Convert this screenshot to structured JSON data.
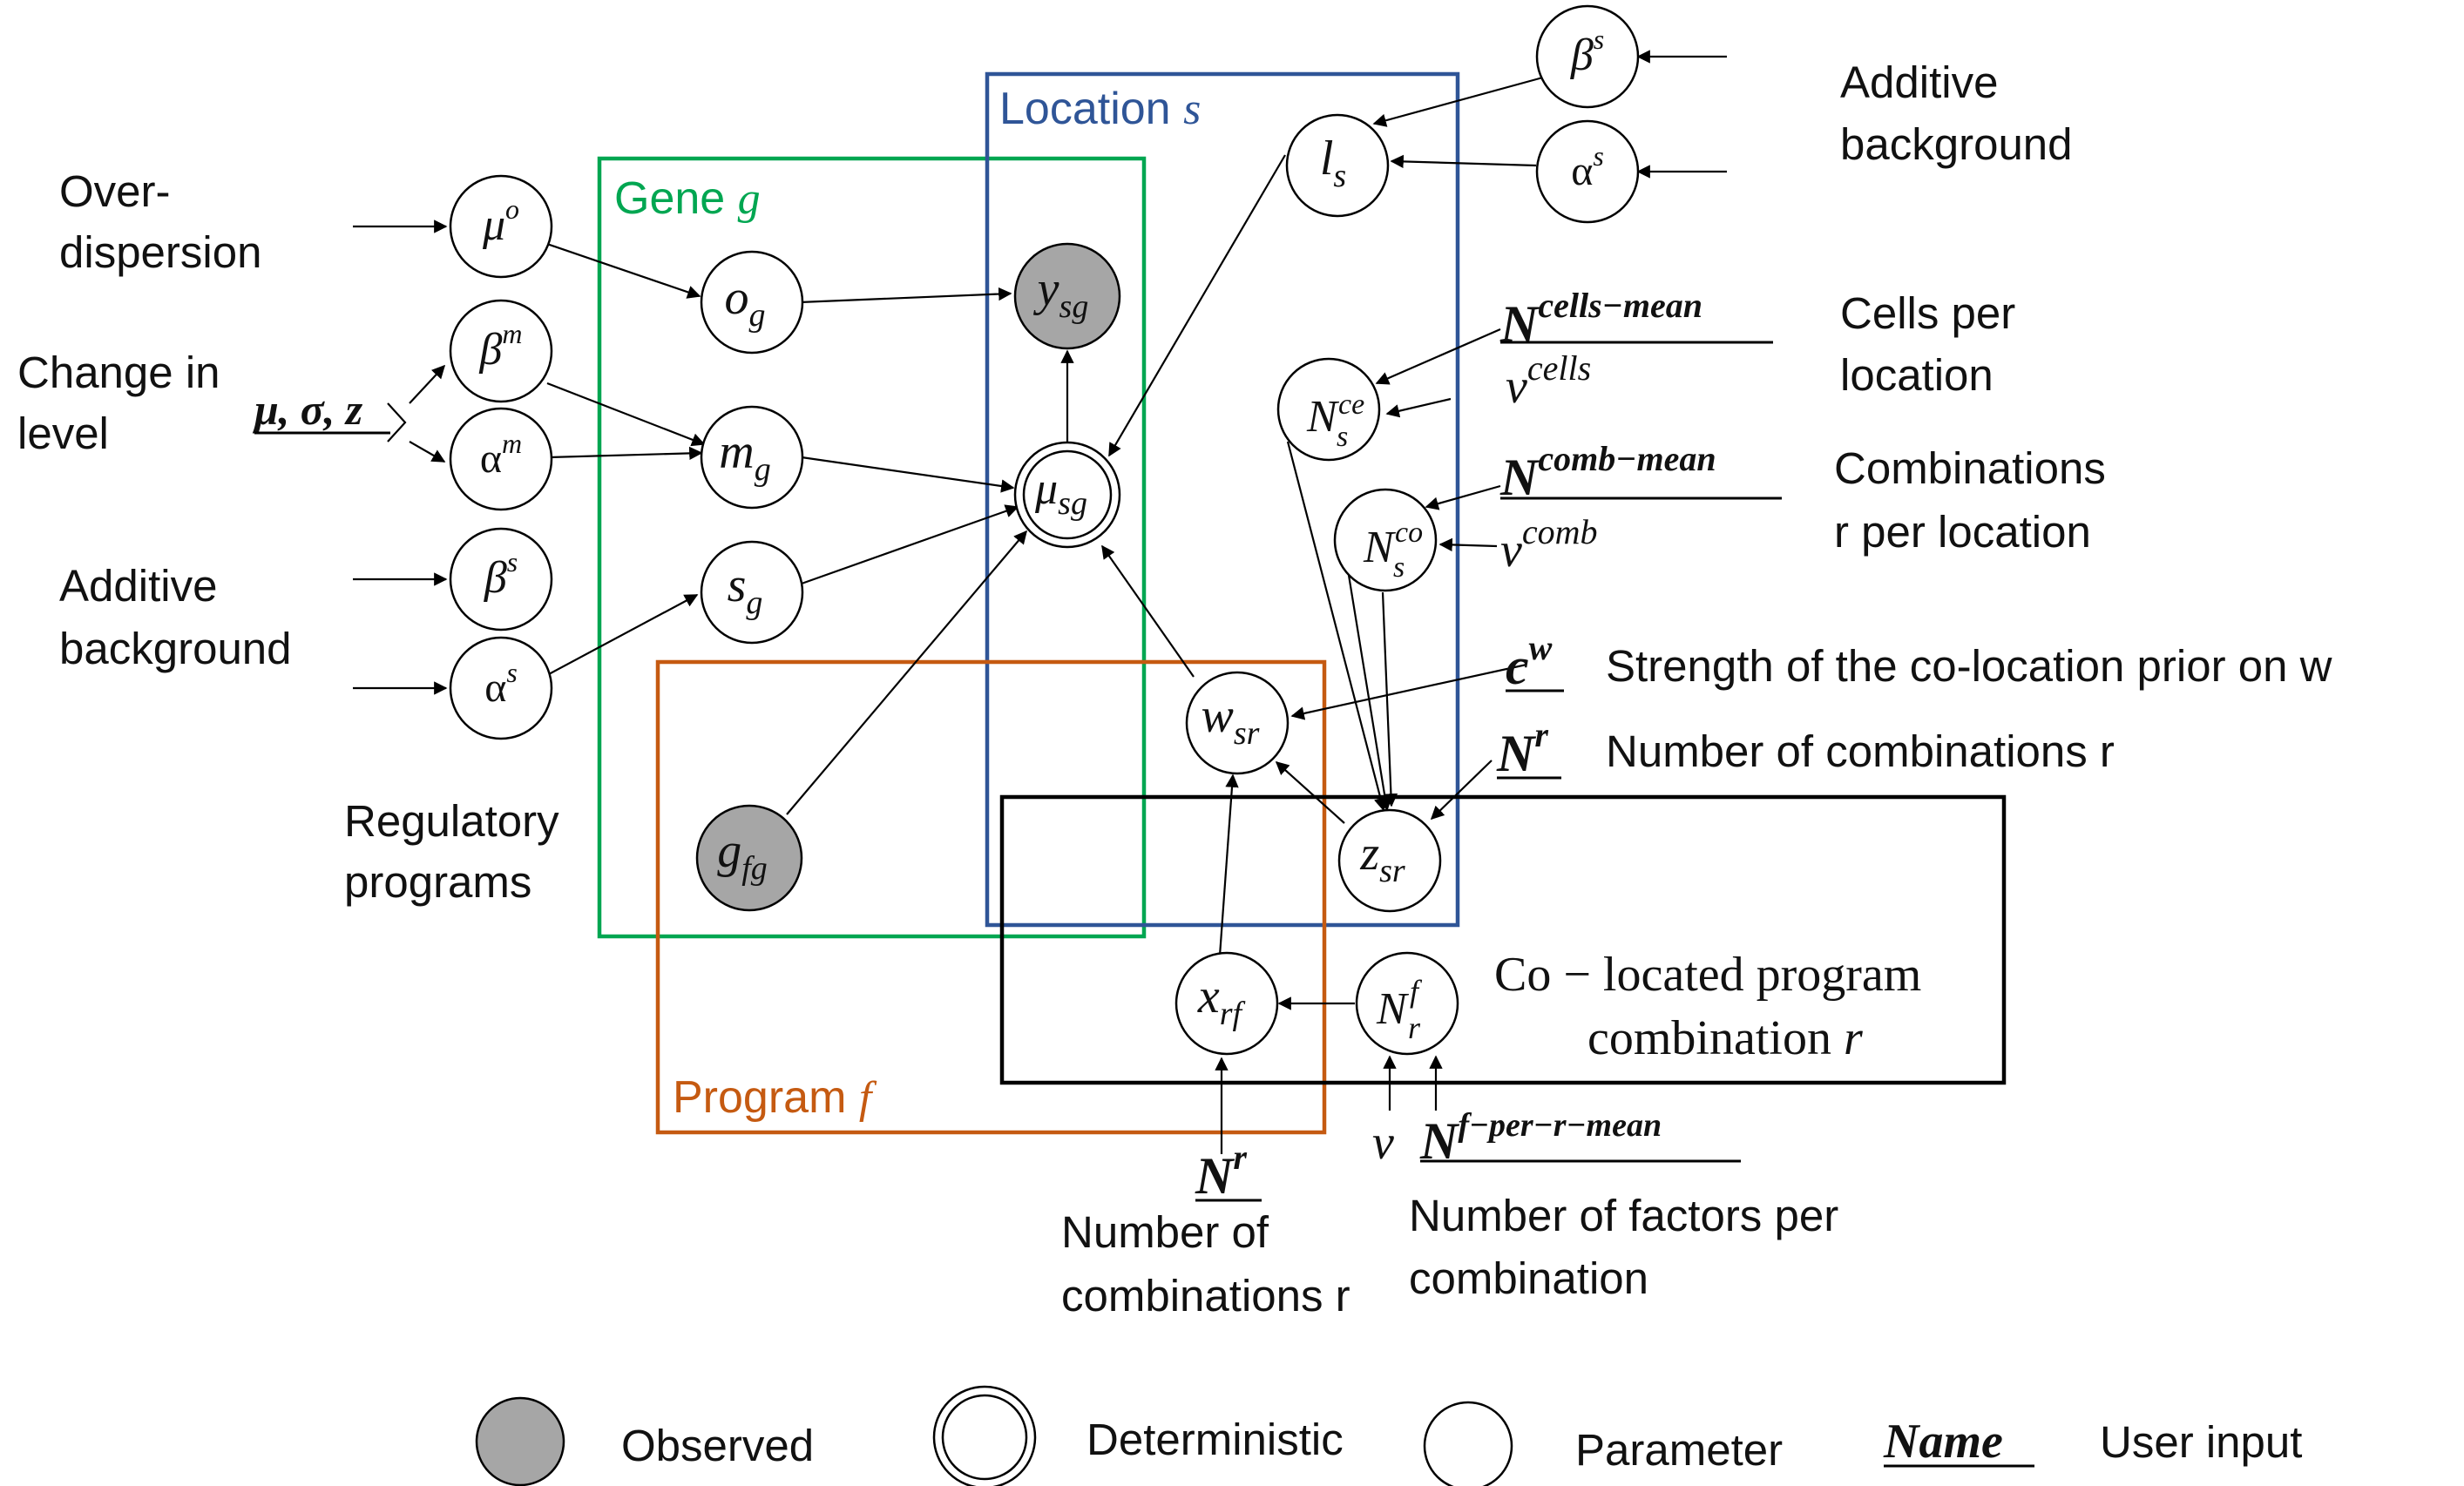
{
  "plates": {
    "location": {
      "label": "Location",
      "symbol": "s",
      "color": "#2f5597"
    },
    "gene": {
      "label": "Gene",
      "symbol": "g",
      "color": "#00a651"
    },
    "program": {
      "label": "Program",
      "symbol": "f",
      "color": "#c55a11"
    },
    "combination": {
      "line1": "Co − located program",
      "line2": "combination",
      "symbol": "r",
      "color": "#000000"
    }
  },
  "annotations": {
    "overdispersion": [
      "Over-",
      "dispersion"
    ],
    "change_in_level": [
      "Change in",
      "level"
    ],
    "additive_background_left": [
      "Additive",
      "background"
    ],
    "regulatory_programs": [
      "Regulatory",
      "programs"
    ],
    "additive_background_right": [
      "Additive",
      "background"
    ],
    "cells_per_location": [
      "Cells per",
      "location"
    ],
    "combinations_per_location": [
      "Combinations",
      "r per location"
    ],
    "colocation_strength": "Strength of the co-location prior on w",
    "number_combinations_right": "Number of combinations r",
    "number_combinations_bottom": [
      "Number of",
      "combinations r"
    ],
    "factors_per_combination": [
      "Number of factors per",
      "combination"
    ]
  },
  "nodes": {
    "mu_o": {
      "base": "μ",
      "sup": "o",
      "observed": false
    },
    "beta_m": {
      "base": "β",
      "sup": "m",
      "observed": false
    },
    "alpha_m": {
      "base": "α",
      "sup": "m",
      "observed": false
    },
    "beta_s_left": {
      "base": "β",
      "sup": "s",
      "observed": false
    },
    "alpha_s_left": {
      "base": "α",
      "sup": "s",
      "observed": false
    },
    "o_g": {
      "base": "o",
      "sub": "g",
      "observed": false
    },
    "m_g": {
      "base": "m",
      "sub": "g",
      "observed": false
    },
    "s_g": {
      "base": "s",
      "sub": "g",
      "observed": false
    },
    "g_fg": {
      "base": "g",
      "sub": "fg",
      "observed": true
    },
    "y_sg": {
      "base": "y",
      "sub": "sg",
      "observed": true
    },
    "mu_sg": {
      "base": "μ",
      "sub": "sg",
      "deterministic": true
    },
    "l_s": {
      "base": "l",
      "sub": "s",
      "observed": false
    },
    "beta_s_right": {
      "base": "β",
      "sup": "s",
      "observed": false
    },
    "alpha_s_right": {
      "base": "α",
      "sup": "s",
      "observed": false
    },
    "N_s_ce": {
      "base": "N",
      "sub": "s",
      "sup": "ce",
      "observed": false
    },
    "N_s_co": {
      "base": "N",
      "sub": "s",
      "sup": "co",
      "observed": false
    },
    "w_sr": {
      "base": "w",
      "sub": "sr",
      "observed": false
    },
    "z_sr": {
      "base": "z",
      "sub": "sr",
      "observed": false
    },
    "x_rf": {
      "base": "x",
      "sub": "rf",
      "observed": false
    },
    "N_r_f": {
      "base": "N",
      "sub": "r",
      "sup": "f",
      "observed": false
    }
  },
  "inputs": {
    "mu_sigma_z": "μ, σ, z",
    "N_cells_mean": {
      "base": "N",
      "sup": "cells−mean"
    },
    "v_cells": {
      "base": "v",
      "sup": "cells"
    },
    "N_comb_mean": {
      "base": "N",
      "sup": "comb−mean"
    },
    "v_comb": {
      "base": "v",
      "sup": "comb"
    },
    "c_w": {
      "base": "c",
      "sup": "w"
    },
    "N_r_right": {
      "base": "N",
      "sup": "r"
    },
    "N_r_bottom": {
      "base": "N",
      "sup": "r"
    },
    "v": "v",
    "N_f_per_r_mean": {
      "base": "N",
      "sup": "f−per−r−mean"
    }
  },
  "legend": {
    "observed": "Observed",
    "deterministic": "Deterministic",
    "parameter": "Parameter",
    "name_sample": "Name",
    "user_input": "User input"
  }
}
